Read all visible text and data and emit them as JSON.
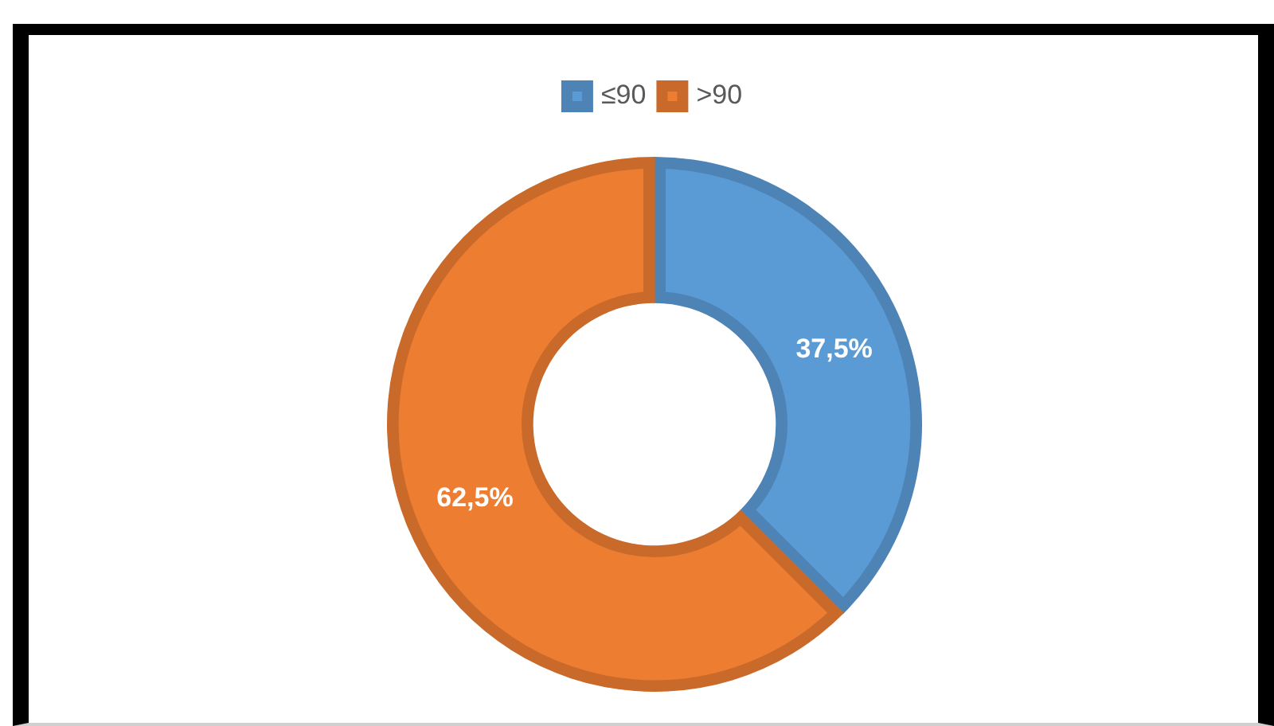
{
  "chart_data": {
    "type": "donut",
    "categories": [
      "≤90",
      ">90"
    ],
    "values": [
      37.5,
      62.5
    ],
    "colors": [
      "#5b9bd5",
      "#ed7d31"
    ],
    "value_labels": [
      "37,5%",
      "62,5%"
    ],
    "legend": "top"
  }
}
